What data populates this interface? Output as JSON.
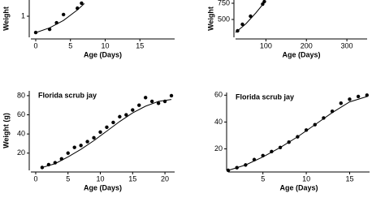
{
  "chart_data": [
    {
      "type": "scatter",
      "y_label": "Weight",
      "x_label": "Age (Days)",
      "x": [
        0,
        2,
        3,
        4,
        6,
        6.6
      ],
      "values": [
        0.23,
        0.38,
        0.69,
        1.08,
        1.38,
        1.62
      ],
      "fit_x": [
        0,
        2,
        4,
        6,
        7
      ],
      "fit_y": [
        0.22,
        0.45,
        0.8,
        1.3,
        1.6
      ],
      "xlim": [
        -0.7,
        20
      ],
      "ylim": [
        0,
        1.77
      ],
      "xticks": [
        0,
        5,
        10,
        15
      ],
      "yticks": [
        1
      ],
      "color": "#000000"
    },
    {
      "type": "scatter",
      "y_label": "Weight",
      "x_label": "Age (Days)",
      "x": [
        30,
        42,
        62,
        92,
        96
      ],
      "values": [
        325,
        425,
        550,
        737,
        775
      ],
      "fit_x": [
        25,
        50,
        75,
        100
      ],
      "fit_y": [
        300,
        430,
        600,
        790
      ],
      "xlim": [
        25,
        350
      ],
      "ylim": [
        225,
        800
      ],
      "xticks": [
        100,
        200,
        300
      ],
      "yticks": [
        500,
        750
      ],
      "color": "#000000"
    },
    {
      "type": "scatter",
      "title": "Florida scrub jay",
      "y_label": "Weight (g)",
      "x_label": "Age (Days)",
      "x": [
        1,
        2,
        3,
        4,
        5,
        6,
        7,
        8,
        9,
        10,
        11,
        12,
        13,
        14,
        15,
        16,
        17,
        18,
        19,
        20,
        21
      ],
      "values": [
        5,
        8,
        10,
        14,
        20,
        26,
        28,
        32,
        36,
        42,
        47,
        52,
        58,
        60,
        65,
        70,
        78,
        74,
        72,
        74,
        80
      ],
      "fit_x": [
        1,
        3,
        5,
        7,
        9,
        11,
        13,
        15,
        17,
        19,
        21
      ],
      "fit_y": [
        5,
        9,
        16,
        24,
        33,
        43,
        53,
        62,
        69,
        74,
        76
      ],
      "xlim": [
        -0.75,
        21.5
      ],
      "ylim": [
        2,
        85
      ],
      "xticks": [
        0,
        5,
        10,
        15,
        20
      ],
      "yticks": [
        20,
        40,
        60,
        80
      ],
      "color": "#000000"
    },
    {
      "type": "scatter",
      "title": "Florida scrub jay",
      "x_label": "Age (Days)",
      "x": [
        1,
        2,
        3,
        4,
        5,
        6,
        7,
        8,
        9,
        10,
        11,
        12,
        13,
        14,
        15,
        16,
        17
      ],
      "values": [
        4,
        6,
        8,
        12,
        15,
        18,
        21,
        25,
        29,
        34,
        38,
        43,
        48,
        54,
        57,
        59,
        60
      ],
      "fit_x": [
        1,
        3,
        5,
        7,
        9,
        11,
        13,
        15,
        17
      ],
      "fit_y": [
        4,
        8,
        14,
        21,
        29,
        38,
        47,
        55,
        59
      ],
      "xlim": [
        1,
        17.3
      ],
      "ylim": [
        4,
        62
      ],
      "xticks": [
        5,
        10,
        15
      ],
      "yticks": [
        20,
        40,
        60
      ],
      "color": "#000000"
    }
  ]
}
